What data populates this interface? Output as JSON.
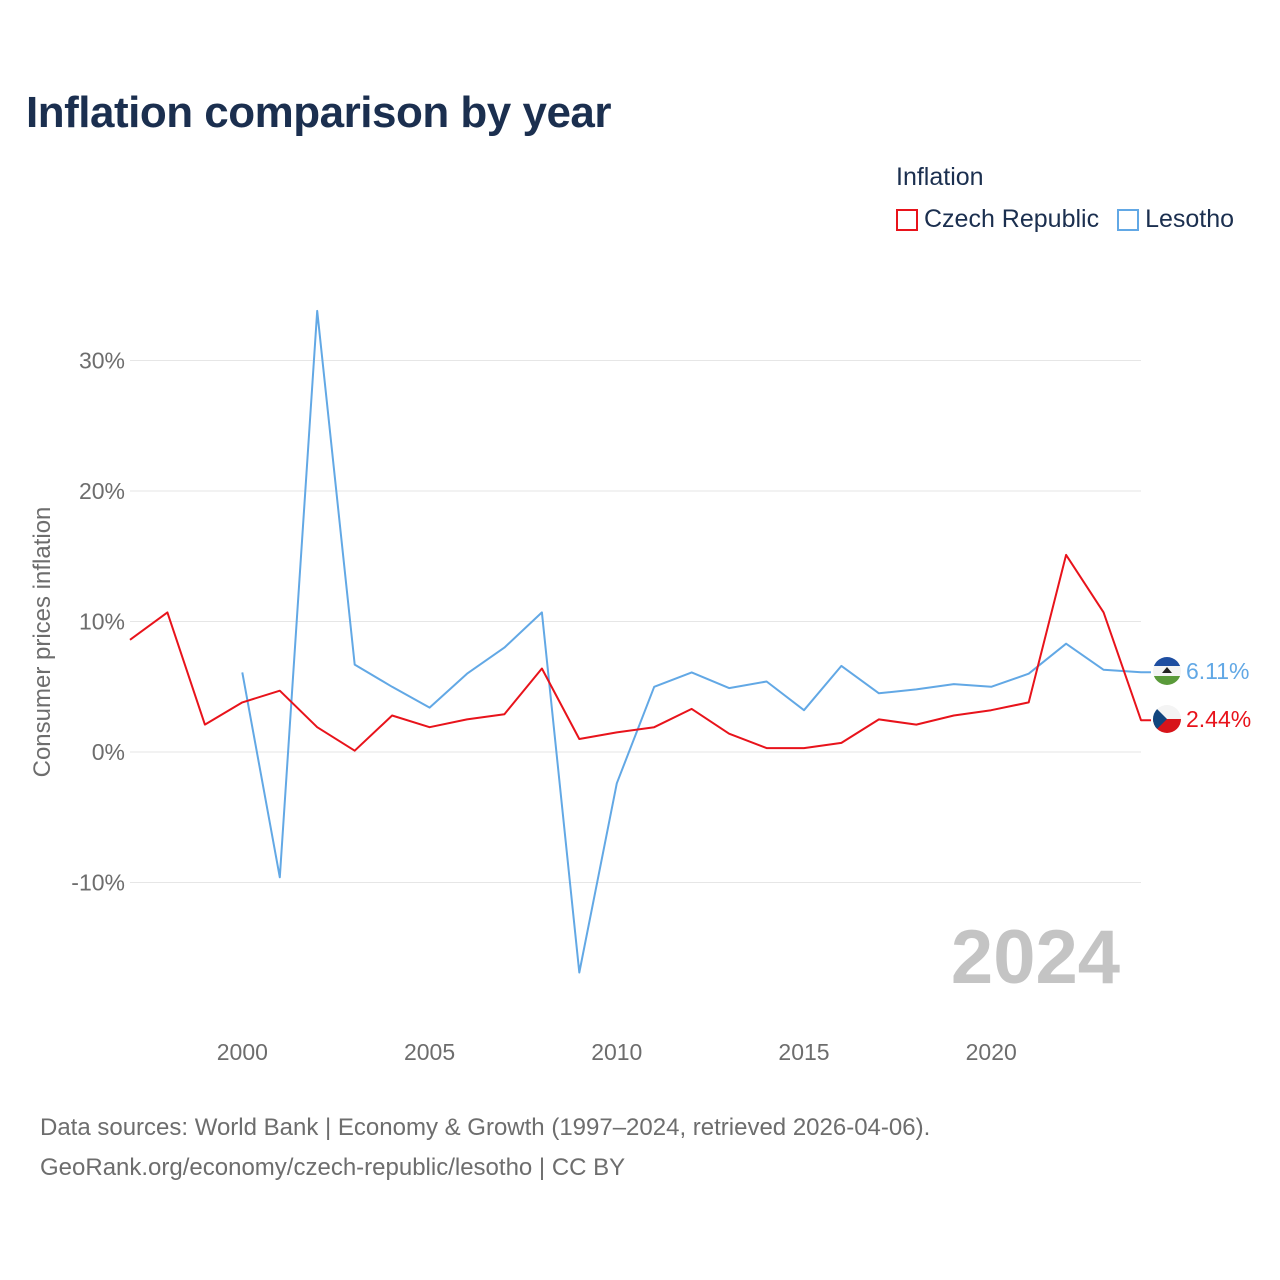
{
  "title": "Inflation comparison by year",
  "legend": {
    "title": "Inflation",
    "items": [
      {
        "name": "Czech Republic",
        "color": "#e8131b"
      },
      {
        "name": "Lesotho",
        "color": "#62a8e5"
      }
    ]
  },
  "source": {
    "line1": "Data sources: World Bank | Economy & Growth (1997–2024, retrieved 2026-04-06).",
    "line2": "GeoRank.org/economy/czech-republic/lesotho | CC BY"
  },
  "chart_data": {
    "type": "line",
    "title": "Inflation comparison by year",
    "ylabel": "Consumer prices inflation",
    "xlabel": "",
    "xlim": [
      1997,
      2024
    ],
    "ylim": [
      -20,
      34
    ],
    "year_label": "2024",
    "x_ticks": [
      2000,
      2005,
      2010,
      2015,
      2020
    ],
    "y_ticks": [
      {
        "value": 30,
        "label": "30%"
      },
      {
        "value": 20,
        "label": "20%"
      },
      {
        "value": 10,
        "label": "10%"
      },
      {
        "value": 0,
        "label": "0%"
      },
      {
        "value": -10,
        "label": "-10%"
      }
    ],
    "series": [
      {
        "name": "Czech Republic",
        "color": "#e8131b",
        "end_label": "2.44%",
        "flag": "czech-flag-icon",
        "x": [
          1997,
          1998,
          1999,
          2000,
          2001,
          2002,
          2003,
          2004,
          2005,
          2006,
          2007,
          2008,
          2009,
          2010,
          2011,
          2012,
          2013,
          2014,
          2015,
          2016,
          2017,
          2018,
          2019,
          2020,
          2021,
          2022,
          2023,
          2024
        ],
        "values": [
          8.6,
          10.7,
          2.1,
          3.8,
          4.7,
          1.9,
          0.1,
          2.8,
          1.9,
          2.5,
          2.9,
          6.4,
          1.0,
          1.5,
          1.9,
          3.3,
          1.4,
          0.3,
          0.3,
          0.7,
          2.5,
          2.1,
          2.8,
          3.2,
          3.8,
          15.1,
          10.7,
          2.44
        ]
      },
      {
        "name": "Lesotho",
        "color": "#62a8e5",
        "end_label": "6.11%",
        "flag": "lesotho-flag-icon",
        "x": [
          2000,
          2001,
          2002,
          2003,
          2004,
          2005,
          2006,
          2007,
          2008,
          2009,
          2010,
          2011,
          2012,
          2013,
          2014,
          2015,
          2016,
          2017,
          2018,
          2019,
          2020,
          2021,
          2022,
          2023,
          2024
        ],
        "values": [
          6.1,
          -9.6,
          33.8,
          6.7,
          5.0,
          3.4,
          6.0,
          8.0,
          10.7,
          -16.9,
          -2.4,
          5.0,
          6.1,
          4.9,
          5.4,
          3.2,
          6.6,
          4.5,
          4.8,
          5.2,
          5.0,
          6.0,
          8.3,
          6.3,
          6.11
        ]
      }
    ]
  }
}
